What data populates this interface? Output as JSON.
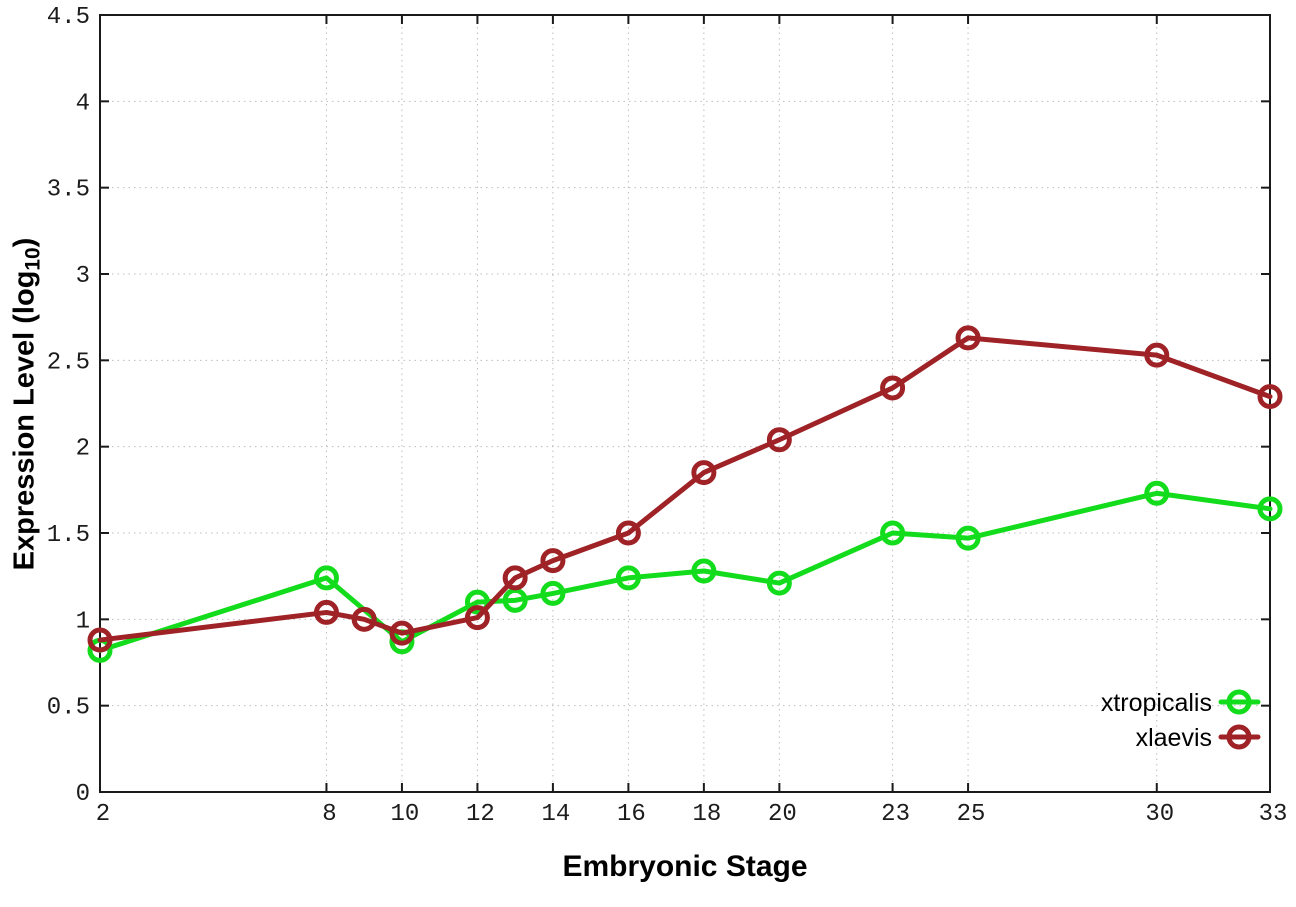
{
  "figure": {
    "background": "#ffffff",
    "xlabel": "Embryonic Stage",
    "ylabel_main": "Expression Level (log",
    "ylabel_sub": "10",
    "ylabel_close": ")"
  },
  "chart_data": {
    "type": "line",
    "title": "",
    "xlabel": "Embryonic Stage",
    "ylabel": "Expression Level (log10)",
    "xlim": [
      2,
      33
    ],
    "ylim": [
      0,
      4.5
    ],
    "x_ticks": [
      2,
      8,
      10,
      12,
      14,
      16,
      18,
      20,
      23,
      25,
      30,
      33
    ],
    "y_ticks": [
      0,
      0.5,
      1,
      1.5,
      2,
      2.5,
      3,
      3.5,
      4,
      4.5
    ],
    "grid": true,
    "legend_position": "bottom-right-inside",
    "axis_color": "#1a1a1a",
    "grid_color": "#bdbdbd",
    "marker": "open-circle",
    "series": [
      {
        "name": "xtropicalis",
        "color": "#13dc1c",
        "points": [
          [
            2,
            0.82
          ],
          [
            8,
            1.24
          ],
          [
            10,
            0.87
          ],
          [
            12,
            1.1
          ],
          [
            13,
            1.11
          ],
          [
            14,
            1.15
          ],
          [
            16,
            1.24
          ],
          [
            18,
            1.28
          ],
          [
            20,
            1.21
          ],
          [
            23,
            1.5
          ],
          [
            25,
            1.47
          ],
          [
            30,
            1.73
          ],
          [
            33,
            1.64
          ]
        ]
      },
      {
        "name": "xlaevis",
        "color": "#9e2226",
        "points": [
          [
            2,
            0.88
          ],
          [
            8,
            1.04
          ],
          [
            9,
            1.0
          ],
          [
            10,
            0.92
          ],
          [
            12,
            1.01
          ],
          [
            13,
            1.24
          ],
          [
            14,
            1.34
          ],
          [
            16,
            1.5
          ],
          [
            18,
            1.85
          ],
          [
            20,
            2.04
          ],
          [
            23,
            2.34
          ],
          [
            25,
            2.63
          ],
          [
            30,
            2.53
          ],
          [
            33,
            2.29
          ]
        ]
      }
    ]
  }
}
